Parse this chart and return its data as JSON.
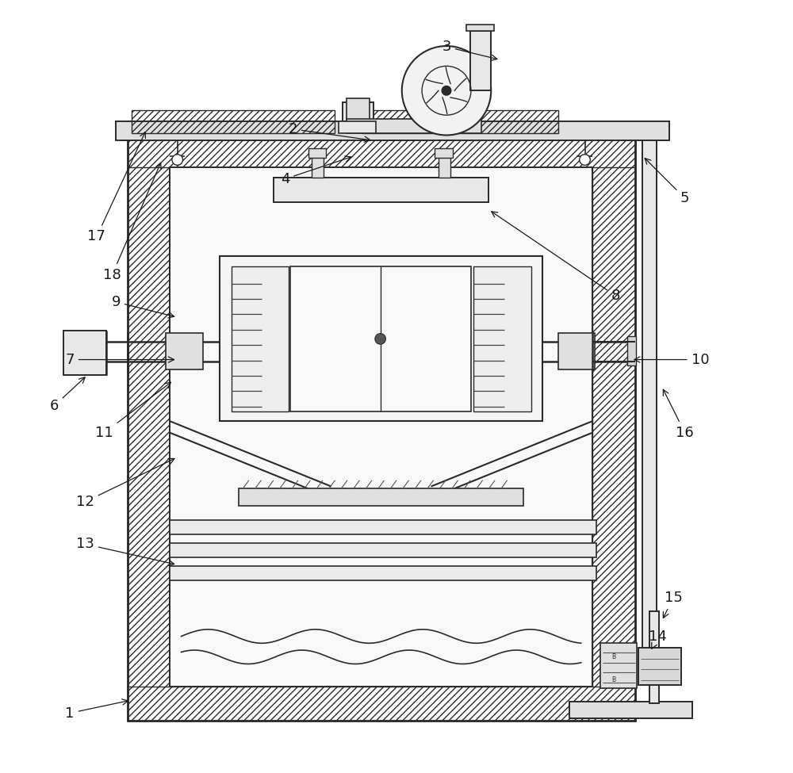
{
  "bg_color": "#ffffff",
  "lc": "#2a2a2a",
  "fig_width": 10.0,
  "fig_height": 9.75,
  "label_fontsize": 13,
  "labels_info": {
    "1": [
      0.075,
      0.075,
      0.155,
      0.092
    ],
    "2": [
      0.365,
      0.835,
      0.47,
      0.82
    ],
    "3": [
      0.565,
      0.942,
      0.635,
      0.925
    ],
    "4": [
      0.355,
      0.77,
      0.445,
      0.8
    ],
    "5": [
      0.875,
      0.745,
      0.82,
      0.8
    ],
    "6": [
      0.055,
      0.475,
      0.098,
      0.515
    ],
    "7": [
      0.075,
      0.535,
      0.215,
      0.535
    ],
    "8": [
      0.785,
      0.618,
      0.62,
      0.73
    ],
    "9": [
      0.135,
      0.61,
      0.215,
      0.59
    ],
    "10": [
      0.895,
      0.535,
      0.805,
      0.535
    ],
    "11": [
      0.12,
      0.44,
      0.21,
      0.508
    ],
    "12": [
      0.095,
      0.35,
      0.215,
      0.408
    ],
    "13": [
      0.095,
      0.295,
      0.215,
      0.268
    ],
    "14": [
      0.84,
      0.175,
      0.83,
      0.155
    ],
    "15": [
      0.86,
      0.225,
      0.845,
      0.195
    ],
    "16": [
      0.875,
      0.44,
      0.845,
      0.5
    ],
    "17": [
      0.11,
      0.695,
      0.175,
      0.835
    ],
    "18": [
      0.13,
      0.645,
      0.195,
      0.795
    ]
  }
}
